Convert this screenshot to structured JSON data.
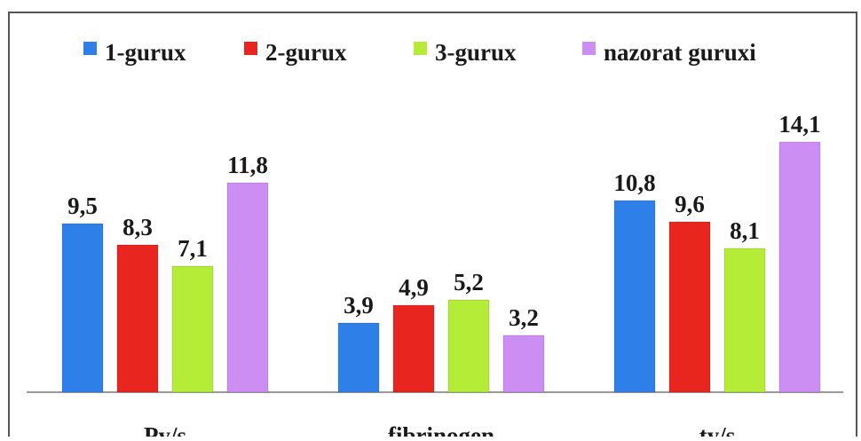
{
  "chart_data": {
    "type": "bar",
    "categories": [
      "Py/s",
      "fibrinogen",
      "ty/s"
    ],
    "series": [
      {
        "name": "1-gurux",
        "values": [
          9.5,
          3.9,
          10.8
        ],
        "labels": [
          "9,5",
          "3,9",
          "10,8"
        ],
        "color": "#2f7fe8"
      },
      {
        "name": "2-gurux",
        "values": [
          8.3,
          4.9,
          9.6
        ],
        "labels": [
          "8,3",
          "4,9",
          "9,6"
        ],
        "color": "#e8251e"
      },
      {
        "name": "3-gurux",
        "values": [
          7.1,
          5.2,
          8.1
        ],
        "labels": [
          "7,1",
          "5,2",
          "8,1"
        ],
        "color": "#b5ec37"
      },
      {
        "name": "nazorat guruxi",
        "values": [
          11.8,
          3.2,
          14.1
        ],
        "labels": [
          "11,8",
          "3,2",
          "14,1"
        ],
        "color": "#cc8ef3"
      }
    ],
    "ylim": [
      0,
      15
    ],
    "grid": false,
    "legend_position": "top"
  }
}
